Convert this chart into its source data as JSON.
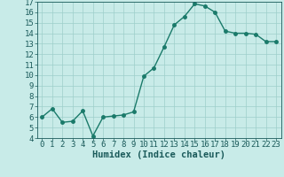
{
  "x": [
    0,
    1,
    2,
    3,
    4,
    5,
    6,
    7,
    8,
    9,
    10,
    11,
    12,
    13,
    14,
    15,
    16,
    17,
    18,
    19,
    20,
    21,
    22,
    23
  ],
  "y": [
    6.0,
    6.8,
    5.5,
    5.6,
    6.6,
    4.2,
    6.0,
    6.1,
    6.2,
    6.5,
    9.9,
    10.7,
    12.7,
    14.8,
    15.6,
    16.8,
    16.6,
    16.0,
    14.2,
    14.0,
    14.0,
    13.9,
    13.2,
    13.2
  ],
  "line_color": "#1a7a6a",
  "marker_color": "#1a7a6a",
  "bg_color": "#c8ebe8",
  "grid_color": "#9ecfca",
  "xlabel": "Humidex (Indice chaleur)",
  "xlim": [
    -0.5,
    23.5
  ],
  "ylim": [
    4,
    17
  ],
  "yticks": [
    4,
    5,
    6,
    7,
    8,
    9,
    10,
    11,
    12,
    13,
    14,
    15,
    16,
    17
  ],
  "xticks": [
    0,
    1,
    2,
    3,
    4,
    5,
    6,
    7,
    8,
    9,
    10,
    11,
    12,
    13,
    14,
    15,
    16,
    17,
    18,
    19,
    20,
    21,
    22,
    23
  ],
  "font_color": "#1a5a5a",
  "fontsize": 6.5,
  "xlabel_fontsize": 7.5,
  "linewidth": 1.0,
  "markersize": 2.5
}
